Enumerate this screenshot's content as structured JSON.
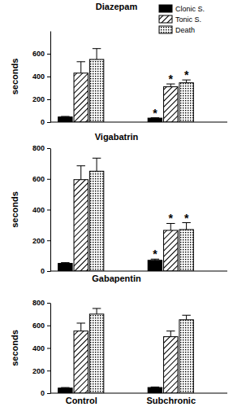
{
  "chart_data": [
    {
      "type": "bar",
      "title": "Diazepam",
      "ylabel": "seconds",
      "categories": [
        null,
        null
      ],
      "ylim": [
        0,
        800
      ],
      "yticks": [
        0,
        200,
        400,
        600
      ],
      "legend": "top-right",
      "series": [
        {
          "name": "Clonic S.",
          "color": "#000000",
          "marker": "solid",
          "values": [
            45,
            35
          ],
          "errors": [
            5,
            3
          ],
          "annotations": [
            null,
            "*"
          ]
        },
        {
          "name": "Tonic S.",
          "color": "#000000",
          "marker": "hatch",
          "values": [
            430,
            310
          ],
          "errors": [
            100,
            25
          ],
          "annotations": [
            null,
            "*"
          ]
        },
        {
          "name": "Death",
          "color": "#000000",
          "marker": "dots",
          "values": [
            550,
            345
          ],
          "errors": [
            95,
            25
          ],
          "annotations": [
            null,
            "*"
          ]
        }
      ]
    },
    {
      "type": "bar",
      "title": "Vigabatrin",
      "ylabel": "seconds",
      "categories": [
        null,
        null
      ],
      "ylim": [
        0,
        800
      ],
      "yticks": [
        0,
        200,
        400,
        600,
        800
      ],
      "series": [
        {
          "color": "#000000",
          "marker": "solid",
          "values": [
            50,
            70
          ],
          "errors": [
            5,
            8
          ],
          "annotations": [
            null,
            "*"
          ]
        },
        {
          "color": "#000000",
          "marker": "hatch",
          "values": [
            595,
            265
          ],
          "errors": [
            90,
            45
          ],
          "annotations": [
            null,
            "*"
          ]
        },
        {
          "color": "#000000",
          "marker": "dots",
          "values": [
            650,
            270
          ],
          "errors": [
            85,
            45
          ],
          "annotations": [
            null,
            "*"
          ]
        }
      ]
    },
    {
      "type": "bar",
      "title": "Gabapentin",
      "ylabel": "seconds",
      "categories": [
        "Control",
        "Subchronic"
      ],
      "ylim": [
        0,
        800
      ],
      "yticks": [
        0,
        200,
        400,
        600,
        800
      ],
      "series": [
        {
          "color": "#000000",
          "marker": "solid",
          "values": [
            45,
            50
          ],
          "errors": [
            5,
            5
          ]
        },
        {
          "color": "#000000",
          "marker": "hatch",
          "values": [
            550,
            500
          ],
          "errors": [
            70,
            50
          ]
        },
        {
          "color": "#000000",
          "marker": "dots",
          "values": [
            700,
            650
          ],
          "errors": [
            50,
            40
          ]
        }
      ]
    }
  ]
}
